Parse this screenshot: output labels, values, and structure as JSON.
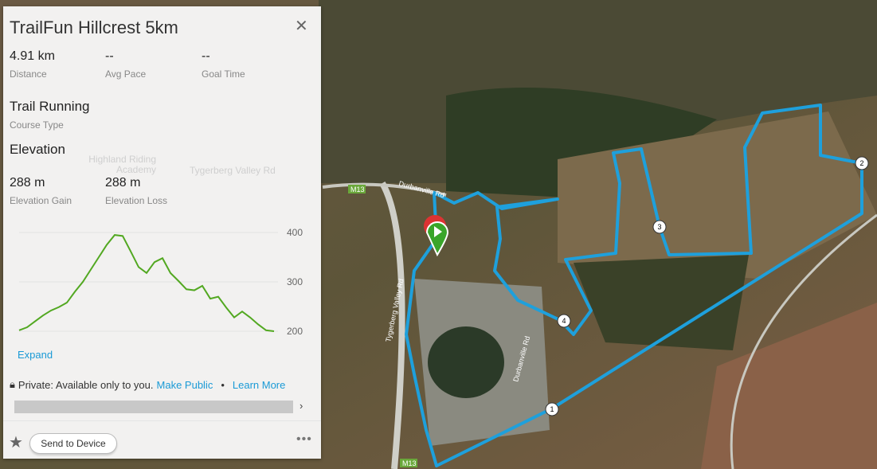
{
  "panel": {
    "title": "TrailFun Hillcrest 5km",
    "stats": [
      {
        "value": "4.91 km",
        "label": "Distance"
      },
      {
        "value": "--",
        "label": "Avg Pace"
      },
      {
        "value": "--",
        "label": "Goal Time"
      }
    ],
    "course_type": {
      "value": "Trail Running",
      "label": "Course Type"
    },
    "elevation_heading": "Elevation",
    "elevation_stats": [
      {
        "value": "288 m",
        "label": "Elevation Gain"
      },
      {
        "value": "288 m",
        "label": "Elevation Loss"
      }
    ],
    "expand": "Expand",
    "privacy": {
      "text": "Private: Available only to you.",
      "make_public": "Make Public",
      "separator": "•",
      "learn_more": "Learn More"
    },
    "send_to_device": "Send to Device"
  },
  "chart_data": {
    "type": "line",
    "yticks": [
      200,
      300,
      400
    ],
    "ylim": [
      200,
      400
    ],
    "line_color": "#52a821",
    "grid": true,
    "values": [
      202,
      208,
      220,
      232,
      242,
      249,
      258,
      280,
      300,
      325,
      350,
      375,
      395,
      393,
      362,
      330,
      318,
      340,
      348,
      318,
      302,
      285,
      283,
      292,
      266,
      270,
      248,
      228,
      240,
      228,
      214,
      202,
      200
    ]
  },
  "map": {
    "route_color": "#1ea0dc",
    "road_labels": [
      "M13",
      "Durbanville Rd",
      "Tygerberg Valley Rd",
      "Durbanville Rd",
      "M13",
      "Highland Riding Academy",
      "Tygerberg Valley Rd"
    ],
    "markers": [
      "1",
      "2",
      "3",
      "4"
    ]
  }
}
